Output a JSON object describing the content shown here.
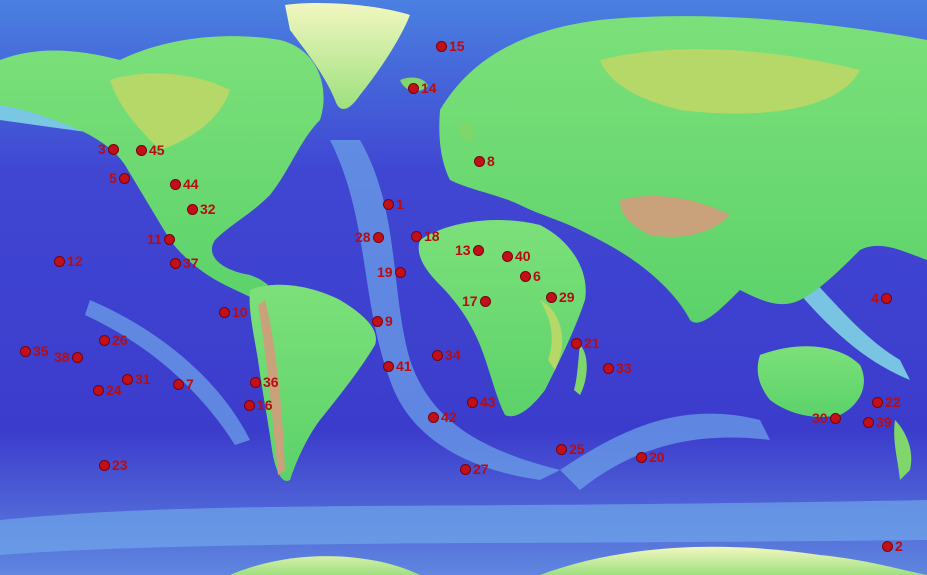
{
  "map": {
    "colors": {
      "deep_ocean": "#3d3fd0",
      "mid_ocean": "#5a7ee0",
      "shelf": "#7fd6e6",
      "lowland": "#5cd86a",
      "highland": "#b9d95a",
      "mountain": "#c9a17a",
      "ice": "#e6f2a8",
      "marker": "#c2101a",
      "label": "#b50d12"
    },
    "markers": [
      {
        "label": "1",
        "side": "r"
      },
      {
        "label": "2",
        "side": "r"
      },
      {
        "label": "3",
        "side": "l"
      },
      {
        "label": "4",
        "side": "l"
      },
      {
        "label": "5",
        "side": "l"
      },
      {
        "label": "6",
        "side": "r"
      },
      {
        "label": "7",
        "side": "r"
      },
      {
        "label": "8",
        "side": "r"
      },
      {
        "label": "9",
        "side": "r"
      },
      {
        "label": "10",
        "side": "r"
      },
      {
        "label": "11",
        "side": "l"
      },
      {
        "label": "12",
        "side": "r"
      },
      {
        "label": "13",
        "side": "l"
      },
      {
        "label": "14",
        "side": "r"
      },
      {
        "label": "15",
        "side": "r"
      },
      {
        "label": "16",
        "side": "r"
      },
      {
        "label": "17",
        "side": "l"
      },
      {
        "label": "18",
        "side": "r"
      },
      {
        "label": "19",
        "side": "l"
      },
      {
        "label": "20",
        "side": "r"
      },
      {
        "label": "21",
        "side": "r"
      },
      {
        "label": "22",
        "side": "r"
      },
      {
        "label": "23",
        "side": "r"
      },
      {
        "label": "24",
        "side": "r"
      },
      {
        "label": "25",
        "side": "r"
      },
      {
        "label": "26",
        "side": "r"
      },
      {
        "label": "27",
        "side": "r"
      },
      {
        "label": "28",
        "side": "l"
      },
      {
        "label": "29",
        "side": "r"
      },
      {
        "label": "30",
        "side": "l"
      },
      {
        "label": "31",
        "side": "r"
      },
      {
        "label": "32",
        "side": "r"
      },
      {
        "label": "33",
        "side": "r"
      },
      {
        "label": "34",
        "side": "r"
      },
      {
        "label": "35",
        "side": "r"
      },
      {
        "label": "36",
        "side": "r"
      },
      {
        "label": "37",
        "side": "r"
      },
      {
        "label": "38",
        "side": "l"
      },
      {
        "label": "39",
        "side": "r"
      },
      {
        "label": "40",
        "side": "r"
      },
      {
        "label": "41",
        "side": "r"
      },
      {
        "label": "42",
        "side": "r"
      },
      {
        "label": "43",
        "side": "r"
      },
      {
        "label": "44",
        "side": "r"
      },
      {
        "label": "45",
        "side": "r"
      }
    ]
  }
}
